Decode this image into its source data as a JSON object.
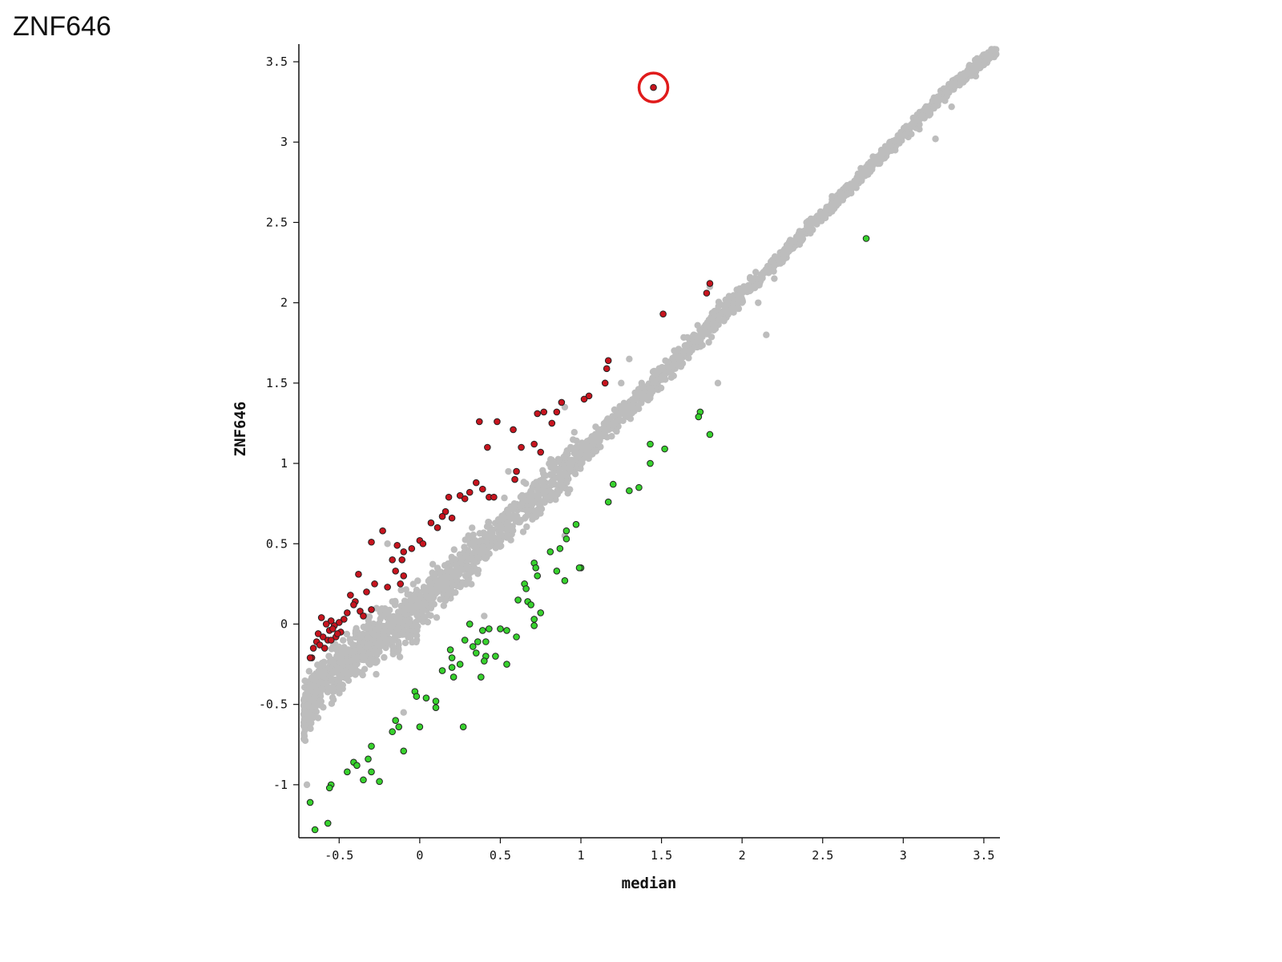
{
  "page_title": "ZNF646",
  "chart_data": {
    "type": "scatter",
    "xlabel": "median",
    "ylabel": "ZNF646",
    "xlim": [
      -0.75,
      3.6
    ],
    "ylim": [
      -1.33,
      3.61
    ],
    "x_ticks": [
      -0.5,
      0,
      0.5,
      1,
      1.5,
      2,
      2.5,
      3,
      3.5
    ],
    "y_ticks": [
      -1,
      -0.5,
      0,
      0.5,
      1,
      1.5,
      2,
      2.5,
      3,
      3.5
    ],
    "x_tick_labels": [
      "-0.5",
      "0",
      "0.5",
      "1",
      "1.5",
      "2",
      "2.5",
      "3",
      "3.5"
    ],
    "y_tick_labels": [
      "-1",
      "-0.5",
      "0",
      "0.5",
      "1",
      "1.5",
      "2",
      "2.5",
      "3",
      "3.5"
    ],
    "grid": false,
    "colors": {
      "background": "#bdbdbd",
      "up": "#c8141e",
      "down": "#37d22d",
      "highlight_ring": "#e01b1b",
      "outline": "#222222"
    },
    "background_band": [
      [
        -0.72,
        -0.55
      ],
      [
        -0.6,
        -0.35
      ],
      [
        -0.4,
        -0.2
      ],
      [
        -0.2,
        -0.05
      ],
      [
        0.0,
        0.1
      ],
      [
        0.3,
        0.4
      ],
      [
        0.5,
        0.6
      ],
      [
        0.8,
        0.85
      ],
      [
        1.0,
        1.05
      ],
      [
        1.5,
        1.55
      ],
      [
        2.0,
        2.05
      ],
      [
        2.5,
        2.55
      ],
      [
        3.0,
        3.05
      ],
      [
        3.3,
        3.35
      ],
      [
        3.58,
        3.57
      ]
    ],
    "background_outliers": [
      [
        3.5,
        3.48
      ],
      [
        3.45,
        3.41
      ],
      [
        3.3,
        3.22
      ],
      [
        3.1,
        3.08
      ],
      [
        3.05,
        3.05
      ],
      [
        3.2,
        3.02
      ],
      [
        2.95,
        2.95
      ],
      [
        2.55,
        2.6
      ],
      [
        2.4,
        2.5
      ],
      [
        2.2,
        2.15
      ],
      [
        2.1,
        2.0
      ],
      [
        1.8,
        2.1
      ],
      [
        1.7,
        1.8
      ],
      [
        1.25,
        1.5
      ],
      [
        1.3,
        1.65
      ],
      [
        0.9,
        1.35
      ],
      [
        0.55,
        0.95
      ],
      [
        -0.2,
        0.5
      ],
      [
        -0.65,
        -0.35
      ],
      [
        -0.7,
        -1.0
      ],
      [
        1.85,
        1.5
      ],
      [
        2.15,
        1.8
      ],
      [
        0.9,
        0.55
      ],
      [
        0.4,
        0.05
      ],
      [
        -0.1,
        -0.55
      ]
    ],
    "series_up": [
      [
        1.45,
        3.34
      ],
      [
        1.8,
        2.12
      ],
      [
        1.78,
        2.06
      ],
      [
        1.51,
        1.93
      ],
      [
        1.17,
        1.64
      ],
      [
        1.16,
        1.59
      ],
      [
        1.15,
        1.5
      ],
      [
        1.05,
        1.42
      ],
      [
        1.02,
        1.4
      ],
      [
        0.88,
        1.38
      ],
      [
        0.77,
        1.32
      ],
      [
        0.73,
        1.31
      ],
      [
        0.85,
        1.32
      ],
      [
        0.82,
        1.25
      ],
      [
        0.37,
        1.26
      ],
      [
        0.48,
        1.26
      ],
      [
        0.58,
        1.21
      ],
      [
        0.63,
        1.1
      ],
      [
        0.71,
        1.12
      ],
      [
        0.75,
        1.07
      ],
      [
        0.42,
        1.1
      ],
      [
        0.6,
        0.95
      ],
      [
        0.59,
        0.9
      ],
      [
        0.35,
        0.88
      ],
      [
        0.39,
        0.84
      ],
      [
        0.43,
        0.79
      ],
      [
        0.46,
        0.79
      ],
      [
        0.31,
        0.82
      ],
      [
        0.28,
        0.78
      ],
      [
        0.25,
        0.8
      ],
      [
        0.18,
        0.79
      ],
      [
        0.16,
        0.7
      ],
      [
        0.2,
        0.66
      ],
      [
        0.14,
        0.67
      ],
      [
        0.07,
        0.63
      ],
      [
        0.11,
        0.6
      ],
      [
        -0.0,
        0.52
      ],
      [
        0.02,
        0.5
      ],
      [
        -0.05,
        0.47
      ],
      [
        -0.1,
        0.45
      ],
      [
        -0.14,
        0.49
      ],
      [
        -0.23,
        0.58
      ],
      [
        -0.3,
        0.51
      ],
      [
        -0.17,
        0.4
      ],
      [
        -0.11,
        0.4
      ],
      [
        -0.15,
        0.33
      ],
      [
        -0.1,
        0.3
      ],
      [
        -0.12,
        0.25
      ],
      [
        -0.2,
        0.23
      ],
      [
        -0.28,
        0.25
      ],
      [
        -0.38,
        0.31
      ],
      [
        -0.33,
        0.2
      ],
      [
        -0.4,
        0.14
      ],
      [
        -0.43,
        0.18
      ],
      [
        -0.37,
        0.08
      ],
      [
        -0.35,
        0.05
      ],
      [
        -0.41,
        0.12
      ],
      [
        -0.3,
        0.09
      ],
      [
        -0.45,
        0.07
      ],
      [
        -0.47,
        0.03
      ],
      [
        -0.5,
        0.01
      ],
      [
        -0.53,
        -0.01
      ],
      [
        -0.55,
        0.02
      ],
      [
        -0.58,
        0.0
      ],
      [
        -0.61,
        0.04
      ],
      [
        -0.56,
        -0.04
      ],
      [
        -0.6,
        -0.08
      ],
      [
        -0.63,
        -0.06
      ],
      [
        -0.64,
        -0.11
      ],
      [
        -0.66,
        -0.15
      ],
      [
        -0.59,
        -0.15
      ],
      [
        -0.57,
        -0.1
      ],
      [
        -0.52,
        -0.08
      ],
      [
        -0.54,
        -0.03
      ],
      [
        -0.49,
        -0.05
      ],
      [
        -0.62,
        -0.13
      ],
      [
        -0.67,
        -0.21
      ],
      [
        -0.68,
        -0.21
      ],
      [
        -0.55,
        -0.1
      ],
      [
        -0.51,
        -0.06
      ]
    ],
    "series_down": [
      [
        2.77,
        2.4
      ],
      [
        1.74,
        1.32
      ],
      [
        1.73,
        1.29
      ],
      [
        1.8,
        1.18
      ],
      [
        1.43,
        1.12
      ],
      [
        1.52,
        1.09
      ],
      [
        1.43,
        1.0
      ],
      [
        1.17,
        0.76
      ],
      [
        1.36,
        0.85
      ],
      [
        1.3,
        0.83
      ],
      [
        1.2,
        0.87
      ],
      [
        0.97,
        0.62
      ],
      [
        0.91,
        0.58
      ],
      [
        0.91,
        0.53
      ],
      [
        0.87,
        0.47
      ],
      [
        1.0,
        0.35
      ],
      [
        0.99,
        0.35
      ],
      [
        0.81,
        0.45
      ],
      [
        0.85,
        0.33
      ],
      [
        0.9,
        0.27
      ],
      [
        0.71,
        0.38
      ],
      [
        0.72,
        0.35
      ],
      [
        0.73,
        0.3
      ],
      [
        0.65,
        0.25
      ],
      [
        0.66,
        0.22
      ],
      [
        0.61,
        0.15
      ],
      [
        0.67,
        0.14
      ],
      [
        0.69,
        0.12
      ],
      [
        0.75,
        0.07
      ],
      [
        0.71,
        0.03
      ],
      [
        0.71,
        -0.01
      ],
      [
        0.6,
        -0.08
      ],
      [
        0.54,
        -0.04
      ],
      [
        0.5,
        -0.03
      ],
      [
        0.43,
        -0.03
      ],
      [
        0.39,
        -0.04
      ],
      [
        0.41,
        -0.11
      ],
      [
        0.33,
        -0.14
      ],
      [
        0.36,
        -0.11
      ],
      [
        0.31,
        0.0
      ],
      [
        0.28,
        -0.1
      ],
      [
        0.35,
        -0.18
      ],
      [
        0.19,
        -0.16
      ],
      [
        0.41,
        -0.2
      ],
      [
        0.47,
        -0.2
      ],
      [
        0.54,
        -0.25
      ],
      [
        0.4,
        -0.23
      ],
      [
        0.2,
        -0.21
      ],
      [
        0.25,
        -0.25
      ],
      [
        0.2,
        -0.27
      ],
      [
        0.21,
        -0.33
      ],
      [
        0.14,
        -0.29
      ],
      [
        0.38,
        -0.33
      ],
      [
        -0.03,
        -0.42
      ],
      [
        -0.02,
        -0.45
      ],
      [
        0.04,
        -0.46
      ],
      [
        0.1,
        -0.48
      ],
      [
        0.1,
        -0.52
      ],
      [
        -0.15,
        -0.6
      ],
      [
        -0.13,
        -0.64
      ],
      [
        -0.17,
        -0.67
      ],
      [
        0.0,
        -0.64
      ],
      [
        0.27,
        -0.64
      ],
      [
        -0.3,
        -0.76
      ],
      [
        -0.1,
        -0.79
      ],
      [
        -0.32,
        -0.84
      ],
      [
        -0.41,
        -0.86
      ],
      [
        -0.39,
        -0.88
      ],
      [
        -0.3,
        -0.92
      ],
      [
        -0.45,
        -0.92
      ],
      [
        -0.35,
        -0.97
      ],
      [
        -0.25,
        -0.98
      ],
      [
        -0.55,
        -1.0
      ],
      [
        -0.56,
        -1.02
      ],
      [
        -0.68,
        -1.11
      ],
      [
        -0.57,
        -1.24
      ],
      [
        -0.65,
        -1.28
      ]
    ]
  }
}
